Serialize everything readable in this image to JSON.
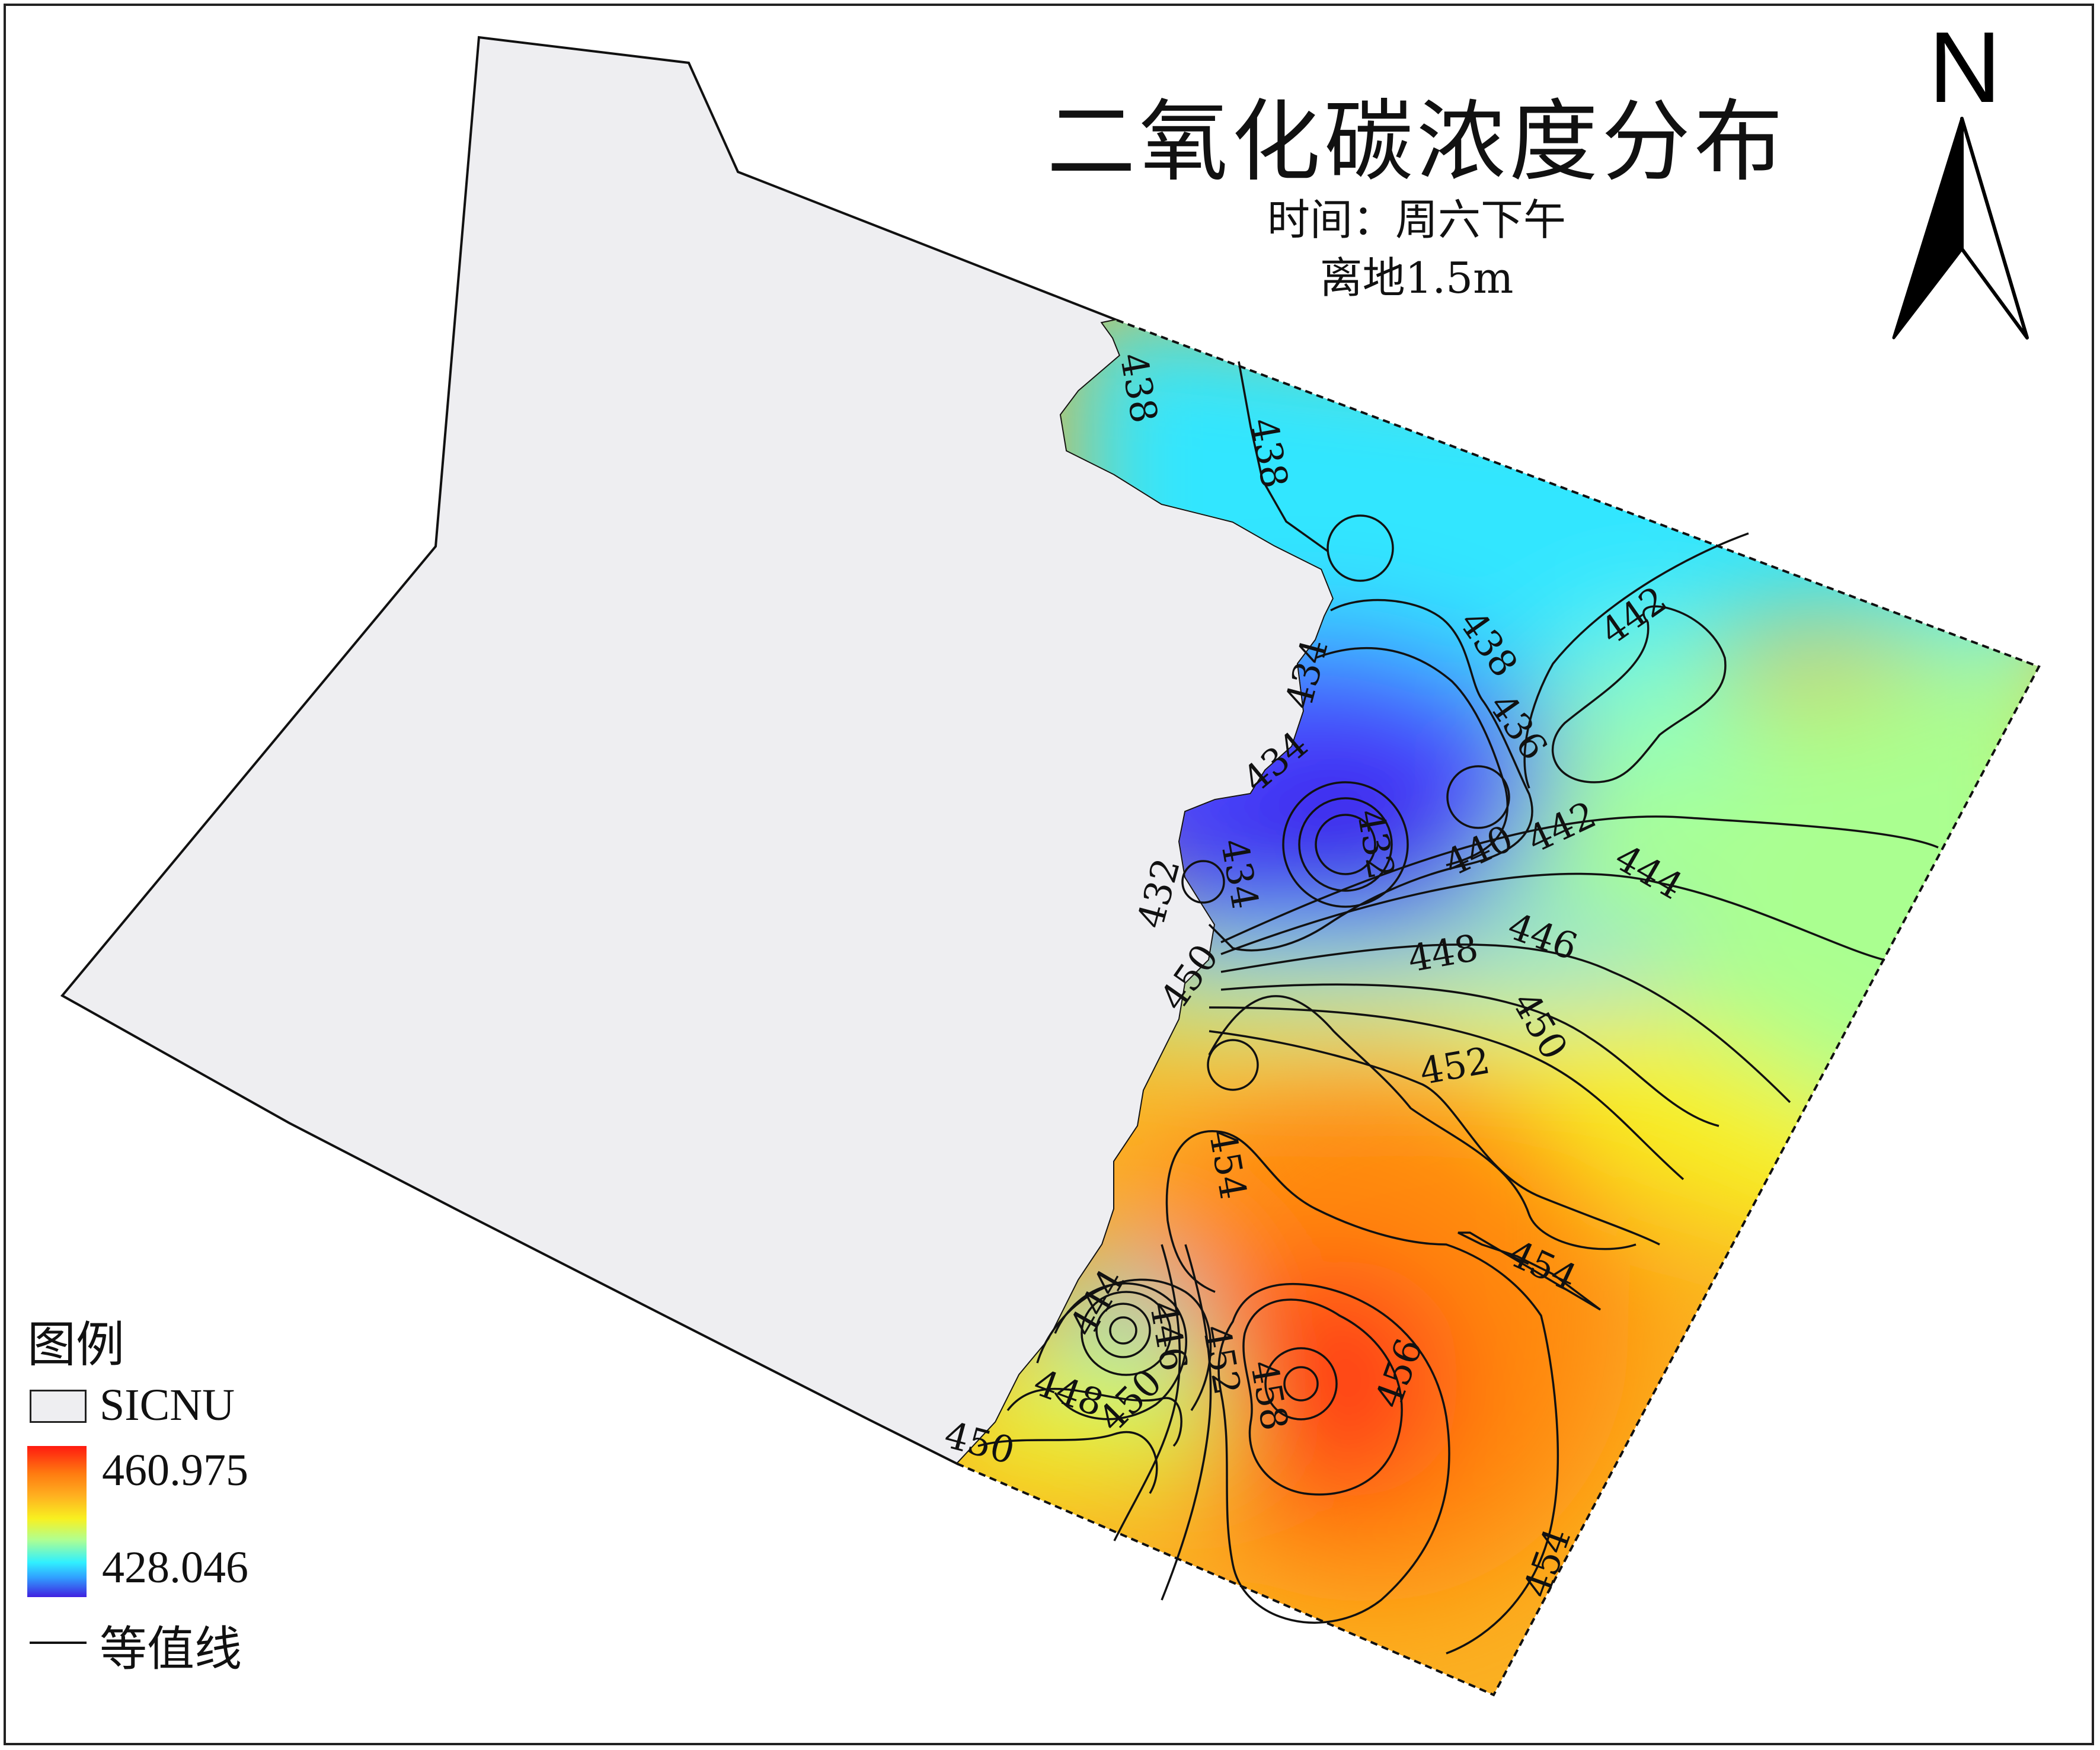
{
  "map": {
    "title": "二氧化碳浓度分布",
    "subtitle_time": "时间：周六下午",
    "subtitle_height": "离地1.5m",
    "north_label": "N"
  },
  "legend": {
    "title": "图例",
    "region_label": "SICNU",
    "max_value": "460.975",
    "min_value": "428.046",
    "contour_label": "等值线"
  },
  "contour_labels": [
    "438",
    "438",
    "438",
    "436",
    "442",
    "434",
    "434",
    "432",
    "434",
    "432",
    "440",
    "442",
    "444",
    "446",
    "448",
    "450",
    "450",
    "452",
    "454",
    "454",
    "444",
    "446",
    "448",
    "450",
    "452",
    "458",
    "456",
    "454",
    "450"
  ],
  "colors": {
    "region_fill": "#eeeef1",
    "max": "#ff1a10",
    "min": "#4020e0"
  }
}
